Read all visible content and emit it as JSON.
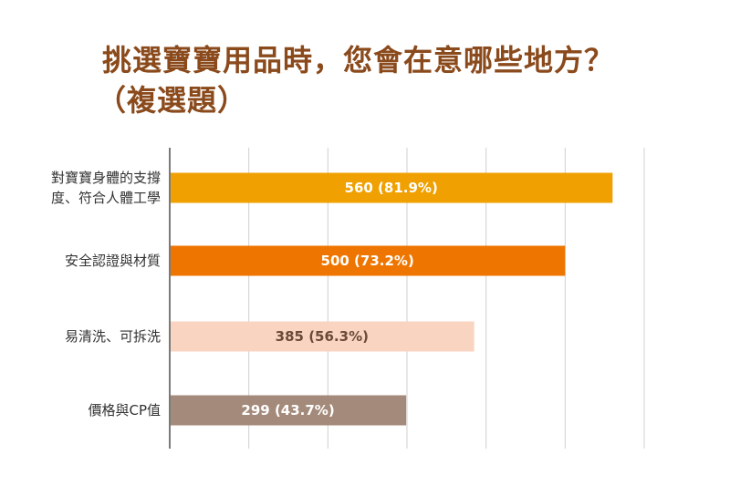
{
  "title_line1": "挑選寶寶用品時，您會在意哪些地方？",
  "title_line2": "（複選題）",
  "colors": {
    "title": "#8a4a1c",
    "grid": "#d0d0d0",
    "axis": "#7a7a7a"
  },
  "chart_data": {
    "type": "bar",
    "orientation": "horizontal",
    "title": "挑選寶寶用品時，您會在意哪些地方？（複選題）",
    "xlim": [
      0,
      600
    ],
    "grid": true,
    "categories": [
      [
        "對寶寶身體的支撐",
        "度、符合人體工學"
      ],
      [
        "安全認證與材質"
      ],
      [
        "易清洗、可拆洗"
      ],
      [
        "價格與CP值"
      ]
    ],
    "values": [
      560,
      500,
      385,
      299
    ],
    "data_labels": [
      "560 (81.9%)",
      "500 (73.2%)",
      "385 (56.3%)",
      "299 (43.7%)"
    ],
    "bar_colors": [
      "#f0a000",
      "#ee7600",
      "#f9d4c0",
      "#a48a7a"
    ],
    "label_colors": [
      "#ffffff",
      "#ffffff",
      "#6b4a3a",
      "#ffffff"
    ]
  }
}
